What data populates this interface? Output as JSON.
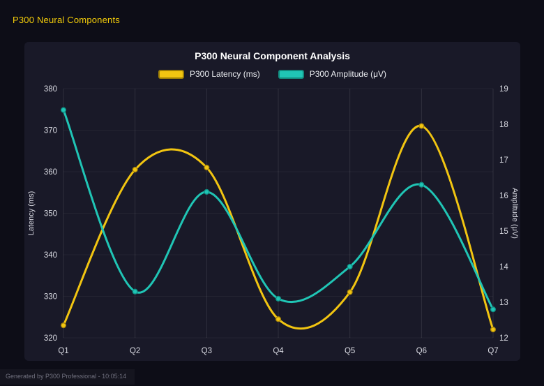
{
  "page": {
    "header": "P300 Neural Components",
    "footer": "Generated by P300 Professional - 10:05:14"
  },
  "chart_data": {
    "type": "line",
    "title": "P300 Neural Component Analysis",
    "categories": [
      "Q1",
      "Q2",
      "Q3",
      "Q4",
      "Q5",
      "Q6",
      "Q7"
    ],
    "series": [
      {
        "name": "P300 Latency (ms)",
        "axis": "left",
        "color": "#f2c511",
        "swatch_border": "#9c7d06",
        "marker_stroke": "#a8860b",
        "values": [
          323,
          360.5,
          361,
          324.5,
          331,
          371,
          322
        ]
      },
      {
        "name": "P300 Amplitude (μV)",
        "axis": "right",
        "color": "#20c5b5",
        "swatch_border": "#12897d",
        "marker_stroke": "#0f8f84",
        "values": [
          18.4,
          13.3,
          16.1,
          13.1,
          14.0,
          16.3,
          12.8
        ]
      }
    ],
    "left_axis": {
      "label": "Latency (ms)",
      "min": 320,
      "max": 380,
      "step": 10
    },
    "right_axis": {
      "label": "Amplitude (μV)",
      "min": 12,
      "max": 19,
      "step": 1
    },
    "grid": true,
    "legend_position": "top"
  }
}
